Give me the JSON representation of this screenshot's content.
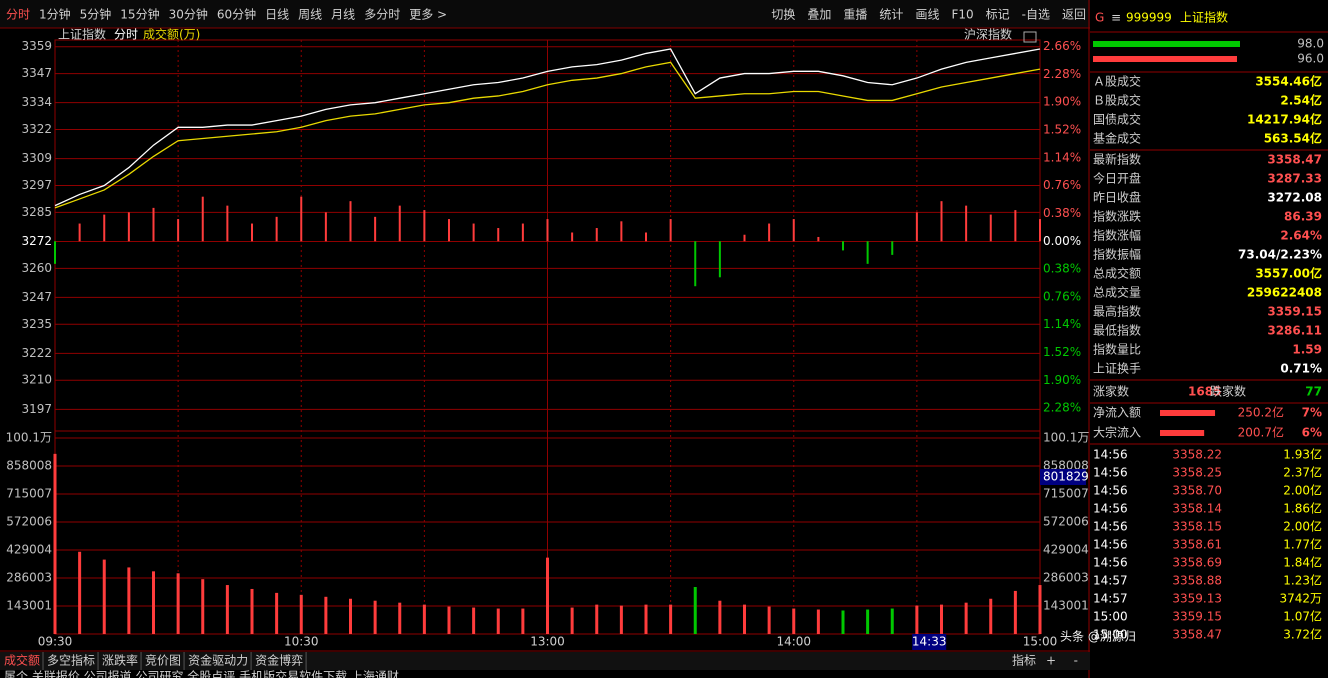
{
  "toolbar": {
    "left": [
      "分时",
      "1分钟",
      "5分钟",
      "15分钟",
      "30分钟",
      "60分钟",
      "日线",
      "周线",
      "月线",
      "多分时",
      "更多 >"
    ],
    "right": [
      "切换",
      "叠加",
      "重播",
      "统计",
      "画线",
      "F10",
      "标记",
      "-自选",
      "返回"
    ]
  },
  "chart_data": [
    {
      "type": "line",
      "title": "上证指数",
      "subtitle": "分时",
      "indicator": "成交额(万)",
      "compare": "沪深指数",
      "x": [
        0,
        6,
        12,
        18,
        24,
        30,
        36,
        42,
        48,
        54,
        60,
        66,
        72,
        78,
        84,
        90,
        96,
        102,
        108,
        114,
        120,
        126,
        132,
        138,
        144,
        150,
        156,
        162,
        168,
        174,
        180,
        186,
        192,
        198,
        204,
        210,
        216,
        222,
        228,
        234,
        240
      ],
      "xlim": [
        0,
        240
      ],
      "xticks": [
        {
          "value": 0,
          "label": "09:30"
        },
        {
          "value": 60,
          "label": "10:30"
        },
        {
          "value": 120,
          "label": "13:00"
        },
        {
          "value": 180,
          "label": "14:00"
        },
        {
          "value": 240,
          "label": "15:00"
        }
      ],
      "ylim": [
        3190,
        3362
      ],
      "yticks": [
        3359,
        3347,
        3334,
        3322,
        3309,
        3297,
        3285,
        3272,
        3260,
        3247,
        3235,
        3222,
        3210,
        3197
      ],
      "base": 3272.08,
      "y2lim": [
        -2.51,
        2.75
      ],
      "y2ticks": [
        {
          "value": 2.66,
          "label": "2.66%"
        },
        {
          "value": 2.28,
          "label": "2.28%"
        },
        {
          "value": 1.9,
          "label": "1.90%"
        },
        {
          "value": 1.52,
          "label": "1.52%"
        },
        {
          "value": 1.14,
          "label": "1.14%"
        },
        {
          "value": 0.76,
          "label": "0.76%"
        },
        {
          "value": 0.38,
          "label": "0.38%"
        },
        {
          "value": 0,
          "label": "0.00%"
        },
        {
          "value": -0.38,
          "label": "0.38%"
        },
        {
          "value": -0.76,
          "label": "0.76%"
        },
        {
          "value": -1.14,
          "label": "1.14%"
        },
        {
          "value": -1.52,
          "label": "1.52%"
        },
        {
          "value": -1.9,
          "label": "1.90%"
        },
        {
          "value": -2.28,
          "label": "2.28%"
        }
      ],
      "series": [
        {
          "color": "#ffffff",
          "values": [
            3288,
            3293,
            3297,
            3305,
            3315,
            3323,
            3323,
            3324,
            3324,
            3326,
            3328,
            3331,
            3333,
            3334,
            3336,
            3338,
            3340,
            3342,
            3343,
            3345,
            3348,
            3350,
            3351,
            3353,
            3356,
            3358,
            3338,
            3345,
            3347,
            3347,
            3348,
            3348,
            3346,
            3343,
            3342,
            3345,
            3349,
            3352,
            3354,
            3356,
            3358
          ]
        },
        {
          "color": "#e8d800",
          "values": [
            3287,
            3291,
            3295,
            3302,
            3310,
            3317,
            3318,
            3319,
            3320,
            3321,
            3323,
            3326,
            3328,
            3329,
            3331,
            3333,
            3334,
            3336,
            3337,
            3339,
            3342,
            3344,
            3345,
            3347,
            3350,
            3352,
            3336,
            3337,
            3338,
            3338,
            3339,
            3339,
            3337,
            3335,
            3335,
            3338,
            3341,
            3343,
            3345,
            3347,
            3349
          ]
        }
      ],
      "breadth": {
        "up_color": "#ff3c3c",
        "down_color": "#00c800",
        "values": [
          3262,
          3280,
          3284,
          3285,
          3287,
          3282,
          3292,
          3288,
          3280,
          3283,
          3292,
          3285,
          3290,
          3283,
          3288,
          3286,
          3282,
          3280,
          3278,
          3280,
          3282,
          3276,
          3278,
          3281,
          3276,
          3282,
          3252,
          3256,
          3275,
          3280,
          3282,
          3274,
          3268,
          3262,
          3266,
          3285,
          3290,
          3288,
          3284,
          3286,
          3282
        ]
      },
      "grid": true,
      "cursor": {
        "value": 213,
        "label": "14:33"
      }
    },
    {
      "type": "bar",
      "values": [
        920000,
        420000,
        380000,
        340000,
        320000,
        310000,
        280000,
        250000,
        230000,
        210000,
        200000,
        190000,
        180000,
        170000,
        160000,
        150000,
        140000,
        135000,
        130000,
        130000,
        390000,
        135000,
        150000,
        145000,
        150000,
        150000,
        240000,
        170000,
        150000,
        140000,
        130000,
        125000,
        120000,
        125000,
        130000,
        145000,
        150000,
        160000,
        180000,
        220000,
        250000
      ],
      "ylim": [
        0,
        1001000
      ],
      "yticks": [
        {
          "value": 1001000,
          "label": "100.1万"
        },
        858008,
        715007,
        572006,
        429004,
        286003,
        143001
      ],
      "up_color": "#ff3c3c",
      "down_color": "#00c800",
      "cursor_value": 801829,
      "grid": true
    }
  ],
  "sidebar": {
    "code_prefix": "G",
    "menu": "≡",
    "code": "999999",
    "name": "上证指数",
    "bars": [
      {
        "value": "98.0",
        "color": "#00c800"
      },
      {
        "value": "96.0",
        "color": "#ff3c3c"
      }
    ],
    "turnover": [
      {
        "label": "Ａ股成交",
        "value": "3554.46亿",
        "color": "#ffff00"
      },
      {
        "label": "Ｂ股成交",
        "value": "2.54亿",
        "color": "#ffff00"
      },
      {
        "label": "国债成交",
        "value": "14217.94亿",
        "color": "#ffff00"
      },
      {
        "label": "基金成交",
        "value": "563.54亿",
        "color": "#ffff00"
      }
    ],
    "stats": [
      {
        "label": "最新指数",
        "value": "3358.47",
        "color": "#ff5050"
      },
      {
        "label": "今日开盘",
        "value": "3287.33",
        "color": "#ff5050"
      },
      {
        "label": "昨日收盘",
        "value": "3272.08",
        "color": "#ffffff"
      },
      {
        "label": "指数涨跌",
        "value": "86.39",
        "color": "#ff5050"
      },
      {
        "label": "指数涨幅",
        "value": "2.64%",
        "color": "#ff5050"
      },
      {
        "label": "指数振幅",
        "value": "73.04/2.23%",
        "color": "#ffffff"
      },
      {
        "label": "总成交额",
        "value": "3557.00亿",
        "color": "#ffff00"
      },
      {
        "label": "总成交量",
        "value": "259622408",
        "color": "#ffff00"
      },
      {
        "label": "最高指数",
        "value": "3359.15",
        "color": "#ff5050"
      },
      {
        "label": "最低指数",
        "value": "3286.11",
        "color": "#ff5050"
      },
      {
        "label": "指数量比",
        "value": "1.59",
        "color": "#ff5050"
      },
      {
        "label": "上证换手",
        "value": "0.71%",
        "color": "#ffffff"
      }
    ],
    "breadth": {
      "up_label": "涨家数",
      "up": "1685",
      "down_label": "跌家数",
      "down": "77"
    },
    "flows": [
      {
        "label": "净流入额",
        "value": "250.2亿",
        "pct": "7%"
      },
      {
        "label": "大宗流入",
        "value": "200.7亿",
        "pct": "6%"
      }
    ]
  },
  "trades": [
    {
      "time": "14:56",
      "price": "3358.22",
      "volume": "1.93亿"
    },
    {
      "time": "14:56",
      "price": "3358.25",
      "volume": "2.37亿"
    },
    {
      "time": "14:56",
      "price": "3358.70",
      "volume": "2.00亿"
    },
    {
      "time": "14:56",
      "price": "3358.14",
      "volume": "1.86亿"
    },
    {
      "time": "14:56",
      "price": "3358.15",
      "volume": "2.00亿"
    },
    {
      "time": "14:56",
      "price": "3358.61",
      "volume": "1.77亿"
    },
    {
      "time": "14:56",
      "price": "3358.69",
      "volume": "1.84亿"
    },
    {
      "time": "14:57",
      "price": "3358.88",
      "volume": "1.23亿"
    },
    {
      "time": "14:57",
      "price": "3359.13",
      "volume": "3742万"
    },
    {
      "time": "15:00",
      "price": "3359.15",
      "volume": "1.07亿"
    },
    {
      "time": "15:00",
      "price": "3358.47",
      "volume": "3.72亿"
    }
  ],
  "bottom_tabs": {
    "left": [
      "成交额",
      "多空指标",
      "涨跌率",
      "竞价图",
      "资金驱动力",
      "资金博弈"
    ],
    "right": [
      "指标",
      "+",
      "-"
    ]
  },
  "footer": "属个  关联报价  公司报道  公司研究  全股点评  手机版交易软件下载  上海通财",
  "watermark": "头条 @溯源归"
}
